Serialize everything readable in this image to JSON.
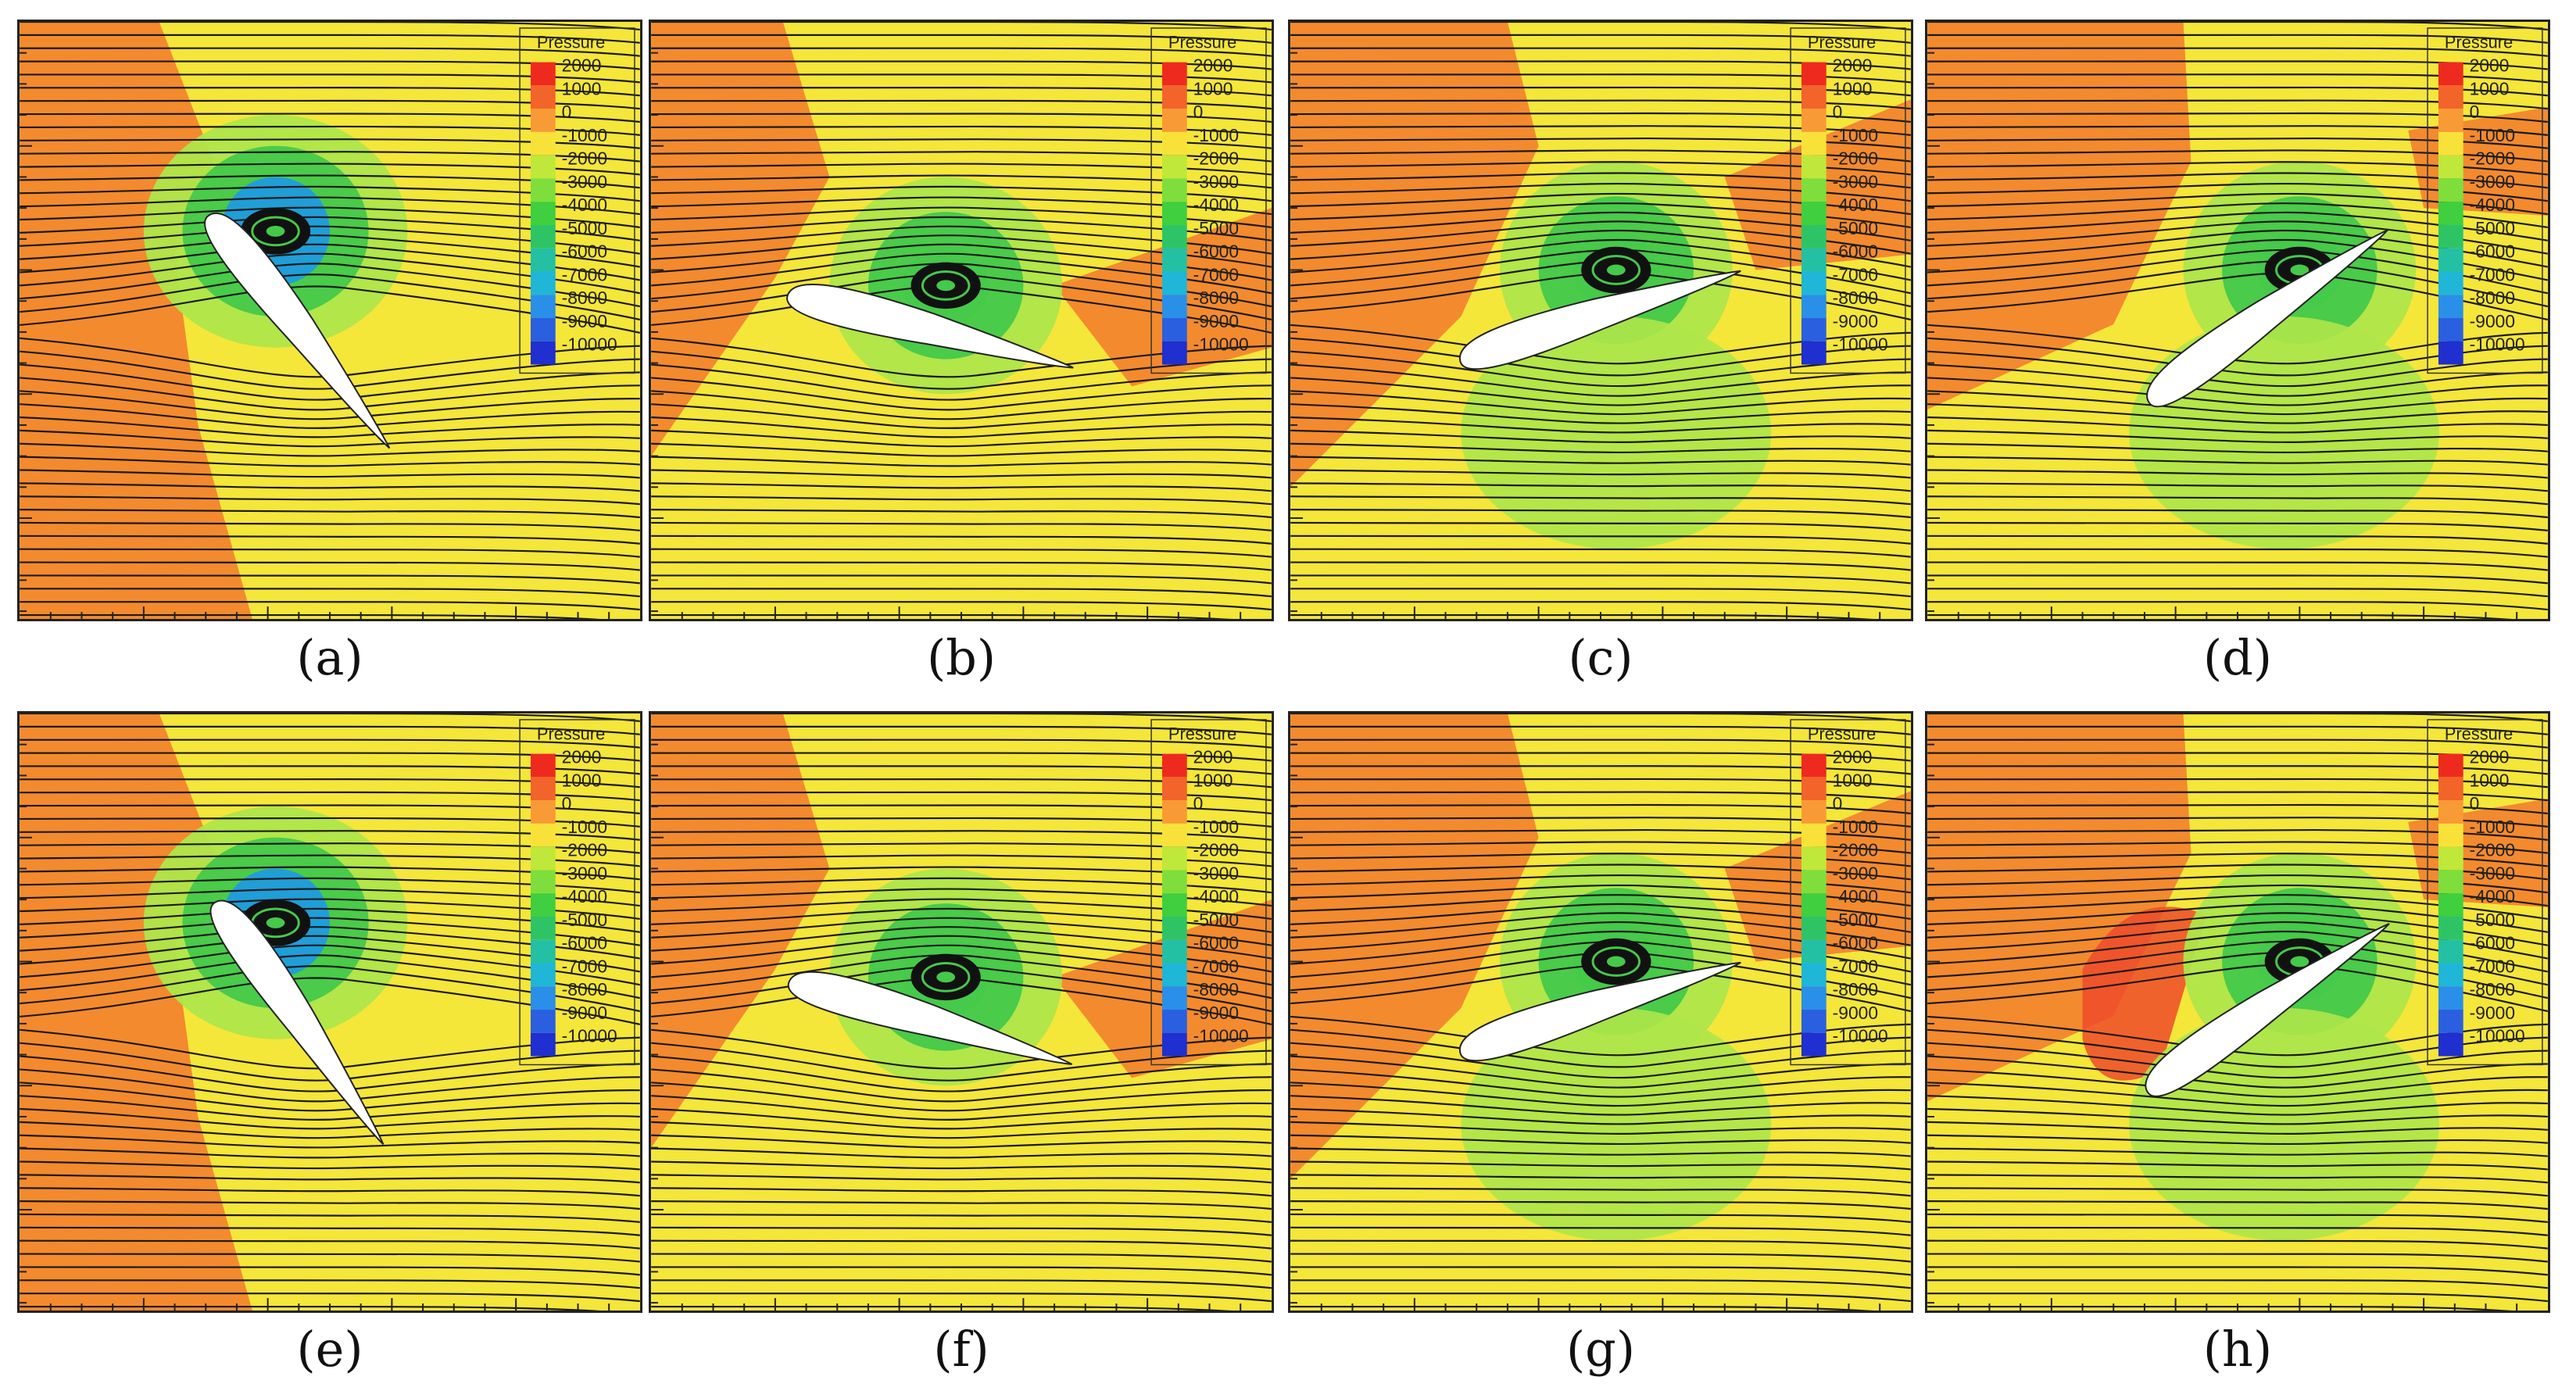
{
  "figure": {
    "panels": [
      {
        "id": "a",
        "label": "(a)",
        "angle_deg": 52,
        "flow_state": "vortex near leading edge"
      },
      {
        "id": "b",
        "label": "(b)",
        "angle_deg": 14,
        "flow_state": "vortex mid-chord"
      },
      {
        "id": "c",
        "label": "(c)",
        "angle_deg": -18,
        "flow_state": "vortex shed above"
      },
      {
        "id": "d",
        "label": "(d)",
        "angle_deg": -36,
        "flow_state": "vortex near trailing edge"
      },
      {
        "id": "e",
        "label": "(e)",
        "angle_deg": 55,
        "flow_state": "vortex near leading edge"
      },
      {
        "id": "f",
        "label": "(f)",
        "angle_deg": 16,
        "flow_state": "vortex mid-chord"
      },
      {
        "id": "g",
        "label": "(g)",
        "angle_deg": -18,
        "flow_state": "vortex shed above"
      },
      {
        "id": "h",
        "label": "(h)",
        "angle_deg": -35,
        "flow_state": "vortex near trailing edge"
      }
    ],
    "legend": {
      "title": "Pressure",
      "levels": [
        "2000",
        "1000",
        "0",
        "-1000",
        "-2000",
        "-3000",
        "-4000",
        "-5000",
        "-6000",
        "-7000",
        "-8000",
        "-9000",
        "-10000"
      ],
      "colors": [
        "#ee2a1f",
        "#f2642a",
        "#f89a36",
        "#f8e23a",
        "#bfe83a",
        "#7fde3c",
        "#3fcf3f",
        "#2ec466",
        "#24c0a4",
        "#1fb6d8",
        "#2a8fe8",
        "#2a5fe0",
        "#1f2fd0"
      ]
    },
    "field_colors": {
      "background_low": "#f5e63a",
      "background_high": "#f48a2e",
      "suction_light": "#aee64a",
      "suction_mid": "#45c94a",
      "suction_deep": "#1e9be0",
      "stagnation": "#ee4a2a",
      "streamline": "#1a1a1a",
      "airfoil": "#ffffff"
    }
  }
}
